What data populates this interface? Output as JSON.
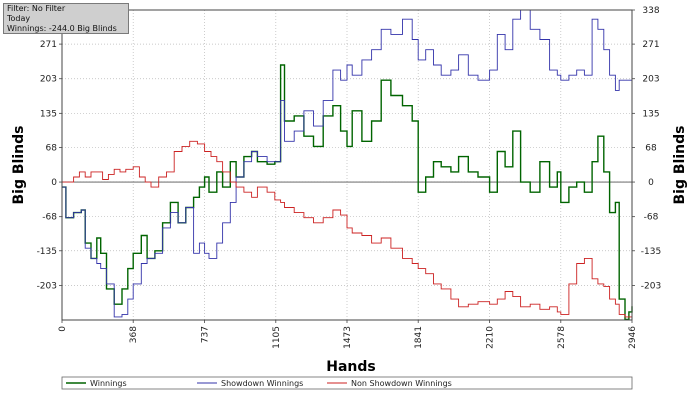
{
  "info_box": {
    "filter": "Filter: No Filter",
    "period": "Today",
    "winnings": "Winnings: -244.0 Big Blinds"
  },
  "chart_data": {
    "type": "line",
    "xlabel": "Hands",
    "ylabel": "Big Blinds",
    "ylabel_right": "Big Blinds",
    "xlim": [
      0,
      2946
    ],
    "ylim": [
      -271,
      338
    ],
    "x_ticks": [
      0,
      368,
      737,
      1105,
      1473,
      1841,
      2210,
      2578,
      2946
    ],
    "y_ticks": [
      -203,
      -135,
      -68,
      0,
      68,
      135,
      203,
      271
    ],
    "y_ticks_right": [
      -203,
      -135,
      -68,
      0,
      68,
      135,
      203,
      271,
      338
    ],
    "grid": true,
    "legend_position": "bottom",
    "series": [
      {
        "name": "Winnings",
        "color": "#006400",
        "points": [
          [
            0,
            -10
          ],
          [
            20,
            -70
          ],
          [
            60,
            -60
          ],
          [
            100,
            -55
          ],
          [
            120,
            -120
          ],
          [
            150,
            -150
          ],
          [
            180,
            -110
          ],
          [
            200,
            -140
          ],
          [
            230,
            -210
          ],
          [
            270,
            -240
          ],
          [
            310,
            -210
          ],
          [
            340,
            -170
          ],
          [
            368,
            -140
          ],
          [
            410,
            -105
          ],
          [
            440,
            -150
          ],
          [
            480,
            -135
          ],
          [
            520,
            -80
          ],
          [
            560,
            -40
          ],
          [
            600,
            -80
          ],
          [
            640,
            -50
          ],
          [
            680,
            -30
          ],
          [
            710,
            -10
          ],
          [
            737,
            10
          ],
          [
            760,
            -20
          ],
          [
            800,
            20
          ],
          [
            830,
            -10
          ],
          [
            870,
            40
          ],
          [
            900,
            10
          ],
          [
            940,
            50
          ],
          [
            980,
            60
          ],
          [
            1010,
            40
          ],
          [
            1060,
            35
          ],
          [
            1100,
            40
          ],
          [
            1130,
            230
          ],
          [
            1150,
            120
          ],
          [
            1200,
            130
          ],
          [
            1250,
            90
          ],
          [
            1300,
            70
          ],
          [
            1350,
            130
          ],
          [
            1400,
            150
          ],
          [
            1440,
            100
          ],
          [
            1473,
            70
          ],
          [
            1500,
            140
          ],
          [
            1550,
            80
          ],
          [
            1600,
            120
          ],
          [
            1650,
            200
          ],
          [
            1700,
            170
          ],
          [
            1760,
            150
          ],
          [
            1810,
            120
          ],
          [
            1841,
            -20
          ],
          [
            1880,
            10
          ],
          [
            1920,
            40
          ],
          [
            1960,
            30
          ],
          [
            2010,
            20
          ],
          [
            2050,
            50
          ],
          [
            2100,
            20
          ],
          [
            2150,
            10
          ],
          [
            2210,
            -20
          ],
          [
            2250,
            60
          ],
          [
            2290,
            30
          ],
          [
            2330,
            100
          ],
          [
            2370,
            0
          ],
          [
            2420,
            -20
          ],
          [
            2470,
            40
          ],
          [
            2520,
            -10
          ],
          [
            2560,
            20
          ],
          [
            2578,
            -40
          ],
          [
            2620,
            -10
          ],
          [
            2660,
            0
          ],
          [
            2700,
            -20
          ],
          [
            2740,
            40
          ],
          [
            2770,
            90
          ],
          [
            2800,
            20
          ],
          [
            2830,
            -60
          ],
          [
            2860,
            -40
          ],
          [
            2880,
            -230
          ],
          [
            2910,
            -270
          ],
          [
            2930,
            -255
          ],
          [
            2946,
            -244
          ]
        ]
      },
      {
        "name": "Showdown Winnings",
        "color": "#3333aa",
        "points": [
          [
            0,
            -10
          ],
          [
            20,
            -70
          ],
          [
            60,
            -60
          ],
          [
            100,
            -55
          ],
          [
            120,
            -130
          ],
          [
            150,
            -150
          ],
          [
            180,
            -160
          ],
          [
            200,
            -170
          ],
          [
            230,
            -200
          ],
          [
            270,
            -265
          ],
          [
            310,
            -260
          ],
          [
            340,
            -230
          ],
          [
            368,
            -200
          ],
          [
            410,
            -160
          ],
          [
            440,
            -150
          ],
          [
            480,
            -140
          ],
          [
            520,
            -90
          ],
          [
            560,
            -60
          ],
          [
            600,
            -80
          ],
          [
            640,
            -50
          ],
          [
            680,
            -140
          ],
          [
            710,
            -120
          ],
          [
            737,
            -140
          ],
          [
            760,
            -150
          ],
          [
            800,
            -120
          ],
          [
            830,
            -80
          ],
          [
            870,
            -40
          ],
          [
            900,
            10
          ],
          [
            940,
            40
          ],
          [
            980,
            60
          ],
          [
            1010,
            50
          ],
          [
            1060,
            40
          ],
          [
            1100,
            40
          ],
          [
            1130,
            160
          ],
          [
            1150,
            80
          ],
          [
            1200,
            100
          ],
          [
            1250,
            140
          ],
          [
            1300,
            110
          ],
          [
            1350,
            160
          ],
          [
            1400,
            220
          ],
          [
            1440,
            200
          ],
          [
            1473,
            230
          ],
          [
            1500,
            210
          ],
          [
            1550,
            240
          ],
          [
            1600,
            260
          ],
          [
            1650,
            300
          ],
          [
            1700,
            290
          ],
          [
            1760,
            320
          ],
          [
            1810,
            280
          ],
          [
            1841,
            240
          ],
          [
            1880,
            260
          ],
          [
            1920,
            230
          ],
          [
            1960,
            210
          ],
          [
            2010,
            220
          ],
          [
            2050,
            250
          ],
          [
            2100,
            210
          ],
          [
            2150,
            200
          ],
          [
            2210,
            220
          ],
          [
            2250,
            290
          ],
          [
            2290,
            260
          ],
          [
            2330,
            320
          ],
          [
            2370,
            338
          ],
          [
            2420,
            300
          ],
          [
            2470,
            280
          ],
          [
            2520,
            220
          ],
          [
            2560,
            210
          ],
          [
            2578,
            200
          ],
          [
            2620,
            210
          ],
          [
            2660,
            220
          ],
          [
            2700,
            210
          ],
          [
            2740,
            320
          ],
          [
            2770,
            300
          ],
          [
            2800,
            260
          ],
          [
            2830,
            210
          ],
          [
            2860,
            180
          ],
          [
            2880,
            200
          ],
          [
            2946,
            200
          ]
        ]
      },
      {
        "name": "Non Showdown Winnings",
        "color": "#cc2222",
        "points": [
          [
            0,
            0
          ],
          [
            30,
            0
          ],
          [
            60,
            10
          ],
          [
            90,
            20
          ],
          [
            120,
            10
          ],
          [
            150,
            20
          ],
          [
            180,
            20
          ],
          [
            210,
            5
          ],
          [
            240,
            15
          ],
          [
            270,
            25
          ],
          [
            300,
            20
          ],
          [
            330,
            25
          ],
          [
            368,
            30
          ],
          [
            400,
            10
          ],
          [
            430,
            0
          ],
          [
            460,
            -10
          ],
          [
            500,
            10
          ],
          [
            540,
            20
          ],
          [
            580,
            60
          ],
          [
            620,
            70
          ],
          [
            660,
            80
          ],
          [
            700,
            75
          ],
          [
            737,
            60
          ],
          [
            770,
            50
          ],
          [
            800,
            40
          ],
          [
            830,
            20
          ],
          [
            870,
            0
          ],
          [
            900,
            -10
          ],
          [
            940,
            -20
          ],
          [
            980,
            -30
          ],
          [
            1010,
            -10
          ],
          [
            1060,
            -20
          ],
          [
            1100,
            -35
          ],
          [
            1130,
            -40
          ],
          [
            1150,
            -50
          ],
          [
            1200,
            -60
          ],
          [
            1250,
            -70
          ],
          [
            1300,
            -80
          ],
          [
            1350,
            -70
          ],
          [
            1400,
            -55
          ],
          [
            1440,
            -65
          ],
          [
            1473,
            -90
          ],
          [
            1500,
            -100
          ],
          [
            1550,
            -105
          ],
          [
            1600,
            -120
          ],
          [
            1650,
            -110
          ],
          [
            1700,
            -130
          ],
          [
            1760,
            -150
          ],
          [
            1810,
            -160
          ],
          [
            1841,
            -170
          ],
          [
            1880,
            -180
          ],
          [
            1920,
            -200
          ],
          [
            1960,
            -210
          ],
          [
            2010,
            -230
          ],
          [
            2050,
            -245
          ],
          [
            2100,
            -240
          ],
          [
            2150,
            -235
          ],
          [
            2210,
            -240
          ],
          [
            2250,
            -230
          ],
          [
            2290,
            -215
          ],
          [
            2330,
            -225
          ],
          [
            2370,
            -245
          ],
          [
            2420,
            -240
          ],
          [
            2470,
            -250
          ],
          [
            2520,
            -245
          ],
          [
            2560,
            -255
          ],
          [
            2578,
            -260
          ],
          [
            2620,
            -200
          ],
          [
            2660,
            -160
          ],
          [
            2700,
            -150
          ],
          [
            2740,
            -190
          ],
          [
            2770,
            -200
          ],
          [
            2800,
            -205
          ],
          [
            2830,
            -230
          ],
          [
            2860,
            -240
          ],
          [
            2880,
            -260
          ],
          [
            2910,
            -265
          ],
          [
            2946,
            -260
          ]
        ]
      }
    ]
  }
}
